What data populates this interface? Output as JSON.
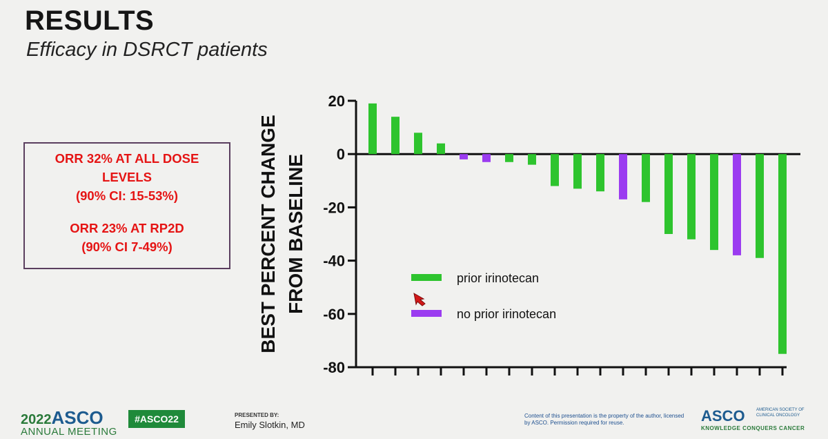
{
  "header": {
    "title": "RESULTS",
    "subtitle": "Efficacy in DSRCT patients"
  },
  "orr_box": {
    "line1": "ORR 32% AT ALL DOSE",
    "line2": "LEVELS",
    "line3": "(90% CI: 15-53%)",
    "line4": "ORR 23% AT RP2D",
    "line5": "(90% CI 7-49%)"
  },
  "colors": {
    "prior": "#2ec42e",
    "no_prior": "#9b3cf0",
    "text_red": "#e51414"
  },
  "chart_data": {
    "type": "bar",
    "title": "",
    "xlabel": "",
    "ylabel_line1": "BEST PERCENT CHANGE",
    "ylabel_line2": "FROM BASELINE",
    "ylim": [
      -80,
      20
    ],
    "yticks": [
      20,
      0,
      -20,
      -40,
      -60,
      -80
    ],
    "ytick_labels": [
      "20",
      "0",
      "-20",
      "-40",
      "-60",
      "-80"
    ],
    "values": [
      19,
      14,
      8,
      4,
      -2,
      -3,
      -3,
      -4,
      -12,
      -13,
      -14,
      -17,
      -18,
      -30,
      -32,
      -36,
      -38,
      -39,
      -75
    ],
    "groups": [
      "prior",
      "prior",
      "prior",
      "prior",
      "no_prior",
      "no_prior",
      "prior",
      "prior",
      "prior",
      "prior",
      "prior",
      "no_prior",
      "prior",
      "prior",
      "prior",
      "prior",
      "no_prior",
      "prior",
      "prior"
    ],
    "legend": [
      {
        "key": "prior",
        "label": "prior irinotecan"
      },
      {
        "key": "no_prior",
        "label": "no prior irinotecan"
      }
    ]
  },
  "footer": {
    "year": "2022",
    "asco": "ASCO",
    "meeting": "ANNUAL MEETING",
    "hashtag": "#ASCO22",
    "presented_by": "PRESENTED BY:",
    "presenter": "Emily Slotkin, MD",
    "copyright": "Content of this presentation is the property of the author, licensed by ASCO. Permission required for reuse.",
    "asco_logo": "ASCO",
    "society": "AMERICAN SOCIETY OF CLINICAL ONCOLOGY",
    "tagline": "KNOWLEDGE CONQUERS CANCER"
  }
}
